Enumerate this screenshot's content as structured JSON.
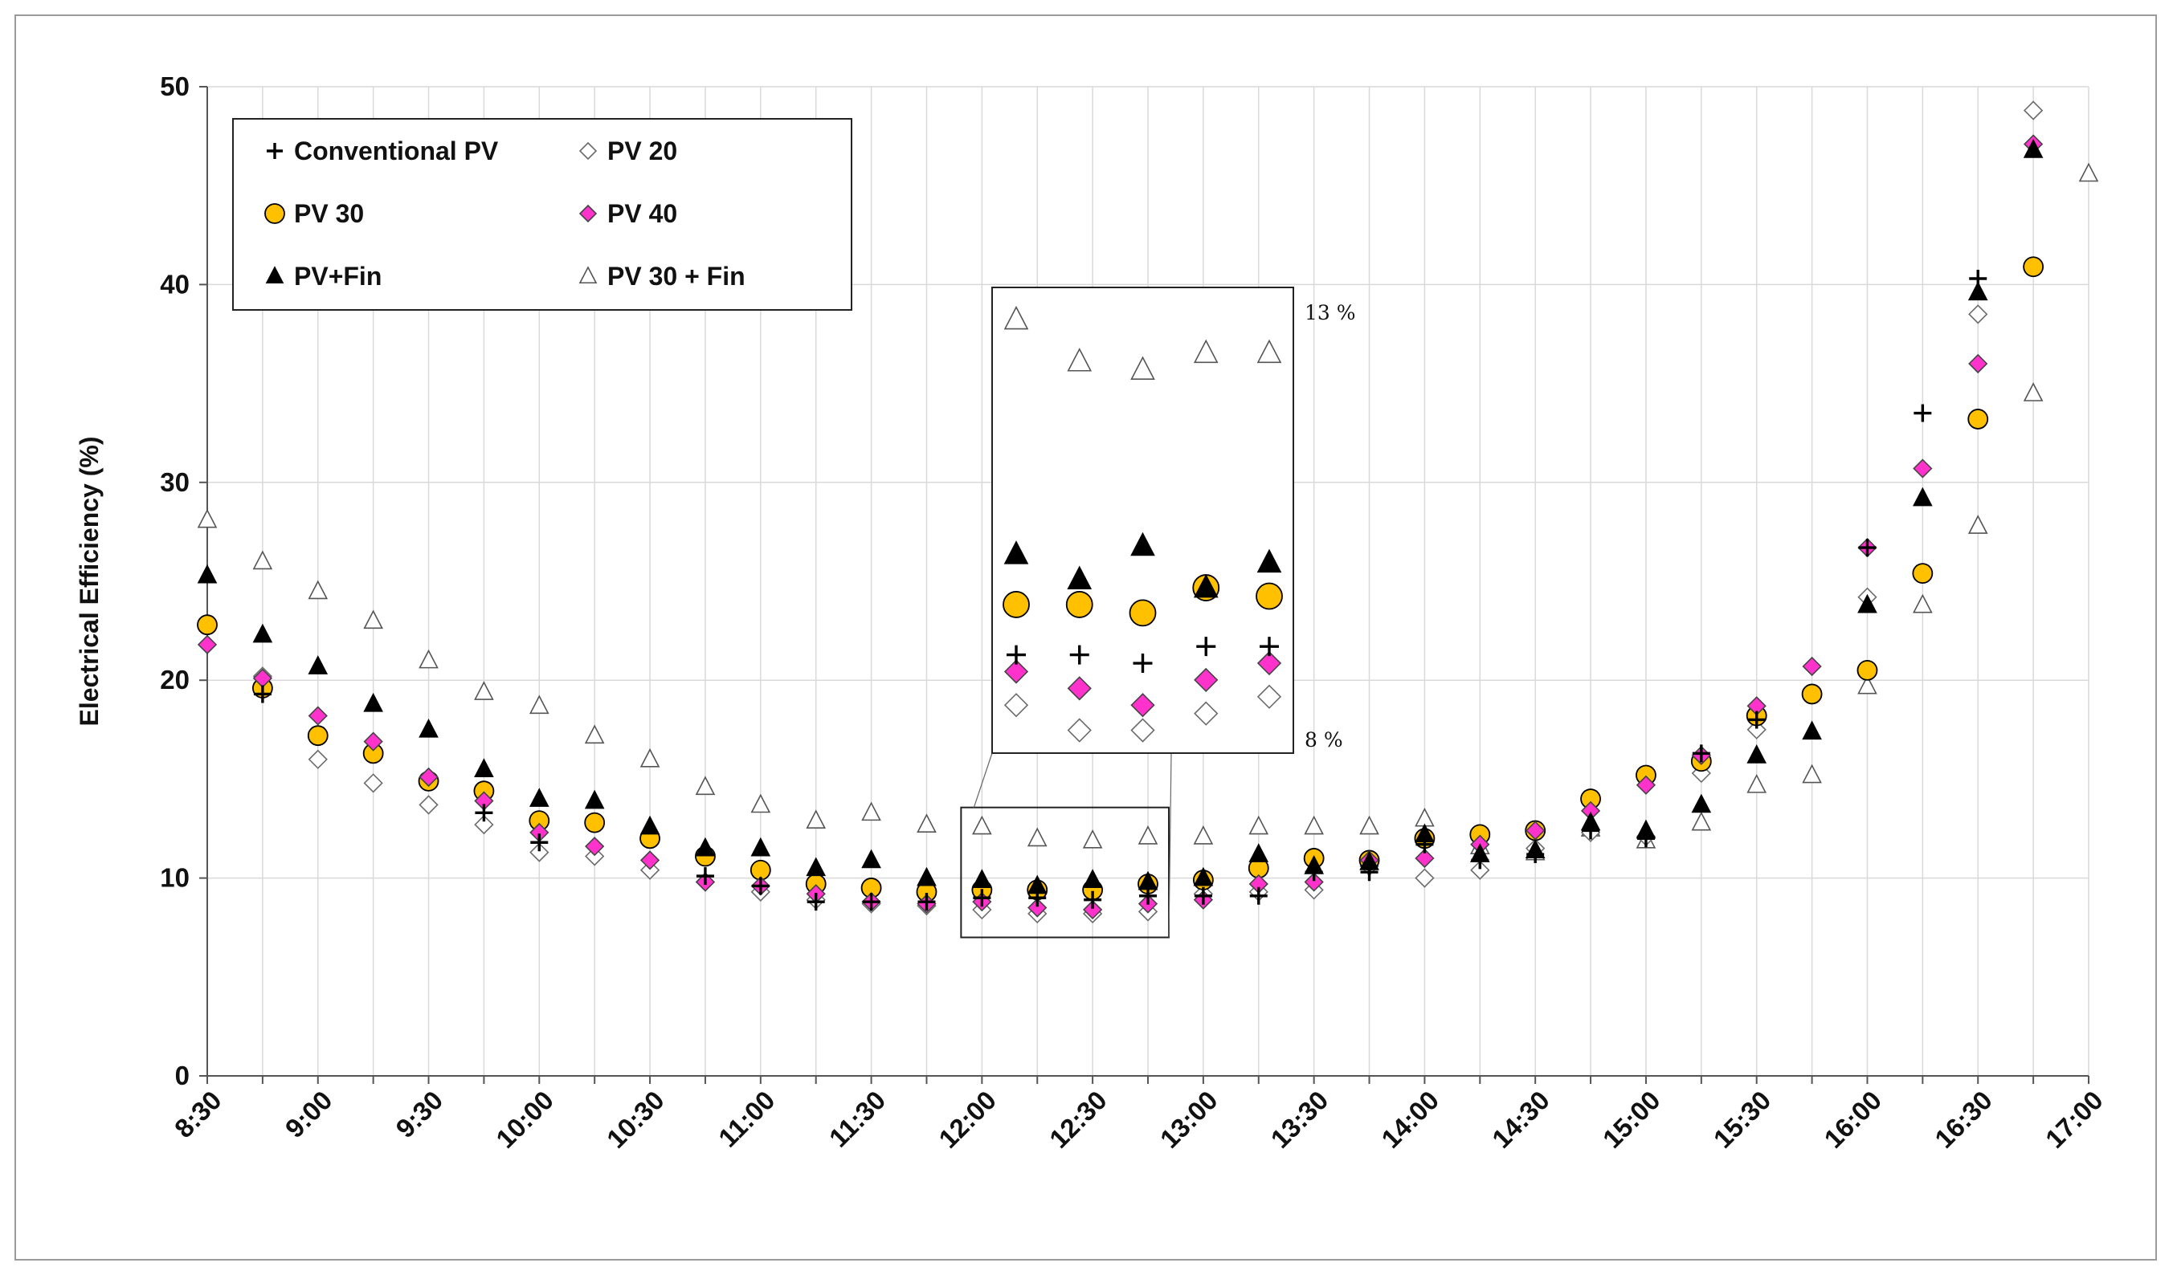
{
  "chart_data": {
    "type": "scatter",
    "title": "",
    "xlabel": "",
    "ylabel": "Electrical Efficiency (%)",
    "ylim": [
      0,
      50
    ],
    "yticks": [
      "0",
      "10",
      "20",
      "30",
      "40",
      "50"
    ],
    "grid": true,
    "legend_position": "top-left",
    "x": [
      "8:30",
      "8:45",
      "9:00",
      "9:15",
      "9:30",
      "9:45",
      "10:00",
      "10:15",
      "10:30",
      "10:45",
      "11:00",
      "11:15",
      "11:30",
      "11:45",
      "12:00",
      "12:15",
      "12:30",
      "12:45",
      "13:00",
      "13:15",
      "13:30",
      "13:45",
      "14:00",
      "14:15",
      "14:30",
      "14:45",
      "15:00",
      "15:15",
      "15:30",
      "15:45",
      "16:00",
      "16:15",
      "16:30",
      "16:45",
      "17:00"
    ],
    "xtick_labels": [
      "8:30",
      "9:00",
      "9:30",
      "10:00",
      "10:30",
      "11:00",
      "11:30",
      "12:00",
      "12:30",
      "13:00",
      "13:30",
      "14:00",
      "14:30",
      "15:00",
      "15:30",
      "16:00",
      "16:30",
      "17:00"
    ],
    "series": [
      {
        "name": "Conventional PV",
        "marker": "plus",
        "fill": "#000000",
        "values": [
          null,
          19.3,
          null,
          null,
          null,
          13.3,
          11.8,
          null,
          null,
          10.1,
          9.6,
          8.8,
          8.8,
          8.8,
          9.0,
          9.0,
          8.9,
          9.1,
          9.1,
          9.1,
          10.3,
          10.3,
          11.7,
          10.9,
          11.2,
          12.4,
          12.0,
          16.3,
          18.0,
          null,
          26.7,
          33.5,
          40.3,
          null,
          null
        ]
      },
      {
        "name": "PV 20",
        "marker": "open-diamond",
        "fill": "#ffffff",
        "values": [
          null,
          20.2,
          16.0,
          14.8,
          13.7,
          12.7,
          11.3,
          11.1,
          10.4,
          9.8,
          9.3,
          8.9,
          8.7,
          8.6,
          8.4,
          8.2,
          8.2,
          8.3,
          9.2,
          9.3,
          9.4,
          10.6,
          10.0,
          10.4,
          11.5,
          12.3,
          12.1,
          15.3,
          17.5,
          null,
          24.2,
          null,
          38.5,
          48.8,
          null
        ]
      },
      {
        "name": "PV 30",
        "marker": "circle",
        "fill": "#ffc000",
        "values": [
          22.8,
          19.6,
          17.2,
          16.3,
          14.9,
          14.4,
          12.9,
          12.8,
          12.0,
          11.1,
          10.4,
          9.7,
          9.5,
          9.3,
          9.4,
          9.4,
          9.4,
          9.7,
          9.9,
          10.5,
          11.0,
          10.9,
          12.0,
          12.2,
          12.4,
          14.0,
          15.2,
          15.9,
          18.2,
          19.3,
          20.5,
          25.4,
          33.2,
          40.9,
          null
        ]
      },
      {
        "name": "PV 40",
        "marker": "diamond",
        "fill": "#ff33cc",
        "values": [
          21.8,
          20.1,
          18.2,
          16.9,
          15.1,
          13.9,
          12.3,
          11.6,
          10.9,
          9.8,
          9.6,
          9.2,
          8.8,
          8.7,
          8.8,
          8.5,
          8.4,
          8.7,
          8.9,
          9.7,
          9.8,
          10.9,
          11.0,
          11.7,
          12.4,
          13.4,
          14.7,
          16.2,
          18.7,
          20.7,
          26.7,
          30.7,
          36.0,
          47.1,
          null
        ]
      },
      {
        "name": "PV+Fin",
        "marker": "triangle",
        "fill": "#000000",
        "values": [
          25.3,
          22.3,
          20.7,
          18.8,
          17.5,
          15.5,
          14.0,
          13.9,
          12.6,
          11.5,
          11.5,
          10.5,
          10.9,
          10.0,
          9.9,
          9.6,
          9.9,
          9.8,
          10.0,
          11.2,
          10.6,
          10.8,
          12.2,
          11.2,
          11.4,
          12.8,
          12.4,
          13.7,
          16.2,
          17.4,
          23.8,
          29.2,
          39.6,
          46.8,
          null
        ]
      },
      {
        "name": "PV 30 + Fin",
        "marker": "open-triangle",
        "fill": "#ffffff",
        "values": [
          28.1,
          26.0,
          24.5,
          23.0,
          21.0,
          19.4,
          18.7,
          17.2,
          16.0,
          14.6,
          13.7,
          12.9,
          13.3,
          12.7,
          12.6,
          12.0,
          11.9,
          12.1,
          12.1,
          12.6,
          12.6,
          12.6,
          13.0,
          11.6,
          11.3,
          12.5,
          11.9,
          12.8,
          14.7,
          15.2,
          19.7,
          23.8,
          27.8,
          34.5,
          45.6
        ]
      }
    ],
    "inset": {
      "source_range": [
        "12:00",
        "12:45"
      ],
      "source_ylim": [
        7,
        13
      ],
      "top_label": "13 %",
      "bottom_label": "8 %",
      "points": [
        {
          "x": "12:15",
          "values": [
            9.0,
            8.4,
            9.6,
            8.8,
            10.2,
            13.0
          ]
        },
        {
          "x": "12:30",
          "values": [
            9.0,
            8.1,
            9.6,
            8.6,
            9.9,
            12.5
          ]
        },
        {
          "x": "12:45",
          "values": [
            8.9,
            8.1,
            9.5,
            8.4,
            10.3,
            12.4
          ]
        },
        {
          "x": "13:00",
          "values": [
            9.1,
            8.3,
            9.8,
            8.7,
            9.8,
            12.6
          ]
        },
        {
          "x": "13:15",
          "values": [
            9.1,
            8.5,
            9.7,
            8.9,
            10.1,
            12.6
          ]
        }
      ]
    }
  }
}
